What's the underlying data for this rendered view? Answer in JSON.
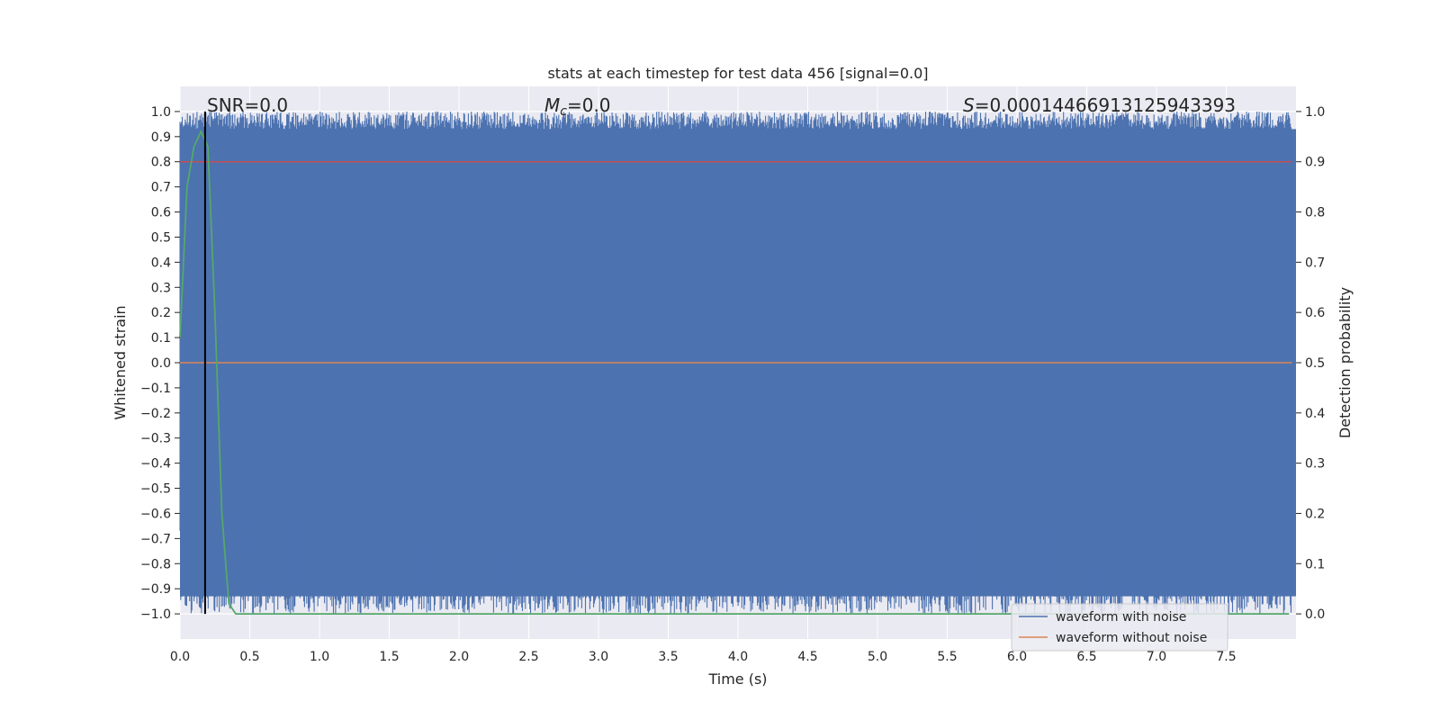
{
  "chart_data": {
    "type": "line",
    "title": "stats at each timestep for test data 456 [signal=0.0]",
    "xlabel": "Time (s)",
    "ylabel": "Whitened strain",
    "y2label": "Detection probability",
    "xlim": [
      0.0,
      8.0
    ],
    "ylim": [
      -1.1,
      1.1
    ],
    "y2lim": [
      -0.05,
      1.05
    ],
    "x_ticks": [
      "0.0",
      "0.5",
      "1.0",
      "1.5",
      "2.0",
      "2.5",
      "3.0",
      "3.5",
      "4.0",
      "4.5",
      "5.0",
      "5.5",
      "6.0",
      "6.5",
      "7.0",
      "7.5"
    ],
    "x_tick_values": [
      0,
      0.5,
      1,
      1.5,
      2,
      2.5,
      3,
      3.5,
      4,
      4.5,
      5,
      5.5,
      6,
      6.5,
      7,
      7.5
    ],
    "y_ticks": [
      "1.0",
      "0.9",
      "0.8",
      "0.7",
      "0.6",
      "0.5",
      "0.4",
      "0.3",
      "0.2",
      "0.1",
      "0.0",
      "−0.1",
      "−0.2",
      "−0.3",
      "−0.4",
      "−0.5",
      "−0.6",
      "−0.7",
      "−0.8",
      "−0.9",
      "−1.0"
    ],
    "y_tick_values": [
      1.0,
      0.9,
      0.8,
      0.7,
      0.6,
      0.5,
      0.4,
      0.3,
      0.2,
      0.1,
      0.0,
      -0.1,
      -0.2,
      -0.3,
      -0.4,
      -0.5,
      -0.6,
      -0.7,
      -0.8,
      -0.9,
      -1.0
    ],
    "y2_ticks": [
      "1.0",
      "0.9",
      "0.8",
      "0.7",
      "0.6",
      "0.5",
      "0.4",
      "0.3",
      "0.2",
      "0.1",
      "0.0"
    ],
    "y2_tick_values": [
      1.0,
      0.9,
      0.8,
      0.7,
      0.6,
      0.5,
      0.4,
      0.3,
      0.2,
      0.1,
      0.0
    ],
    "annotations": {
      "snr": "SNR=0.0",
      "mc_symbol": "M",
      "mc_sub": "c",
      "mc_value": "=0.0",
      "s_symbol": "S",
      "s_value": "=0.00014466913125943393"
    },
    "series": [
      {
        "name": "waveform with noise",
        "color": "#4c72b0",
        "description_values": "dense noise spanning roughly -1.0 to 1.0 throughout 0-8 s"
      },
      {
        "name": "waveform without noise",
        "color": "#dd8452",
        "values_constant": 0.0
      },
      {
        "color": "#55a868",
        "axis": "right",
        "x": [
          0.0,
          0.05,
          0.1,
          0.15,
          0.2,
          0.25,
          0.3,
          0.35,
          0.4,
          7.95
        ],
        "y": [
          0.55,
          0.85,
          0.93,
          0.96,
          0.93,
          0.6,
          0.2,
          0.02,
          0.0,
          0.0
        ]
      }
    ],
    "threshold_line": {
      "axis": "right",
      "value": 0.9,
      "color": "#c44e52"
    },
    "vertical_line": {
      "x": 0.18,
      "color": "#000000"
    },
    "legend_position": "lower-right",
    "grid": true
  }
}
